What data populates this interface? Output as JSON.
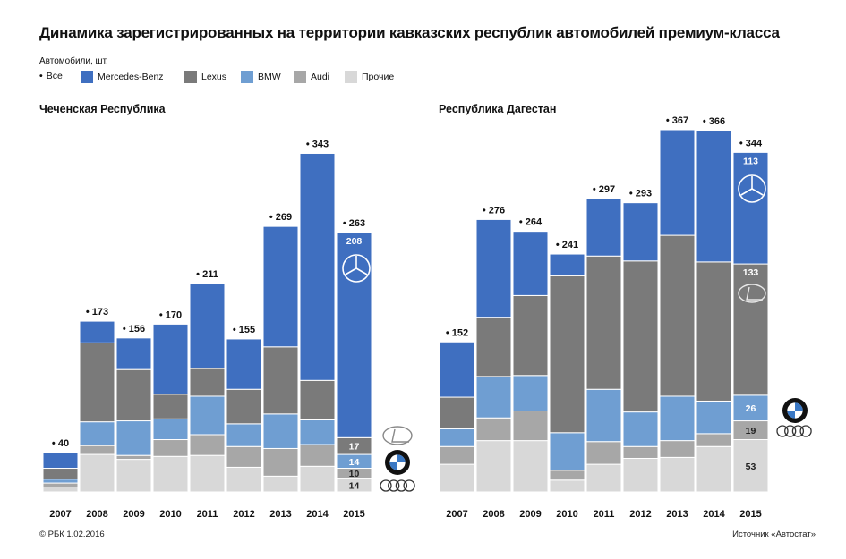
{
  "title": "Динамика зарегистрированных на территории кавказских республик автомобилей премиум-класса",
  "units_label": "Автомобили, шт.",
  "legend": {
    "all_label": "Все",
    "items": [
      {
        "name": "Mercedes-Benz",
        "color": "#3f6fc0"
      },
      {
        "name": "Lexus",
        "color": "#7a7a7a"
      },
      {
        "name": "BMW",
        "color": "#6f9ed2"
      },
      {
        "name": "Audi",
        "color": "#a7a7a7"
      },
      {
        "name": "Прочие",
        "color": "#d8d8d8"
      }
    ]
  },
  "icons": [
    "mercedes-logo-icon",
    "lexus-logo-icon",
    "bmw-logo-icon",
    "audi-logo-icon"
  ],
  "footer": {
    "left": "© РБК 1.02.2016",
    "right": "Источник «Автостат»"
  },
  "chart_data": [
    {
      "type": "bar",
      "stacked": true,
      "title": "Чеченская Республика",
      "categories": [
        "2007",
        "2008",
        "2009",
        "2010",
        "2011",
        "2012",
        "2013",
        "2014",
        "2015"
      ],
      "totals": [
        40,
        173,
        156,
        170,
        211,
        155,
        269,
        343,
        263
      ],
      "series": [
        {
          "name": "Прочие",
          "values": [
            5,
            38,
            33,
            36,
            37,
            25,
            16,
            26,
            14
          ]
        },
        {
          "name": "Audi",
          "values": [
            4,
            9,
            4,
            17,
            21,
            21,
            28,
            22,
            10
          ]
        },
        {
          "name": "BMW",
          "values": [
            4,
            24,
            35,
            21,
            39,
            23,
            35,
            25,
            14
          ]
        },
        {
          "name": "Lexus",
          "values": [
            11,
            80,
            52,
            25,
            28,
            35,
            68,
            40,
            17
          ]
        },
        {
          "name": "Mercedes-Benz",
          "values": [
            16,
            22,
            32,
            71,
            86,
            51,
            122,
            230,
            208
          ]
        }
      ],
      "labeled_values_2015": {
        "Mercedes-Benz": 208,
        "Lexus": 17,
        "BMW": 14,
        "Audi": 10,
        "Прочие": 14
      }
    },
    {
      "type": "bar",
      "stacked": true,
      "title": "Республика Дагестан",
      "categories": [
        "2007",
        "2008",
        "2009",
        "2010",
        "2011",
        "2012",
        "2013",
        "2014",
        "2015"
      ],
      "totals": [
        152,
        276,
        264,
        241,
        297,
        293,
        367,
        366,
        344
      ],
      "series": [
        {
          "name": "Прочие",
          "values": [
            28,
            52,
            52,
            12,
            28,
            34,
            35,
            46,
            53
          ]
        },
        {
          "name": "Audi",
          "values": [
            18,
            23,
            30,
            10,
            23,
            12,
            17,
            13,
            19
          ]
        },
        {
          "name": "BMW",
          "values": [
            18,
            42,
            36,
            38,
            53,
            35,
            45,
            33,
            26
          ]
        },
        {
          "name": "Lexus",
          "values": [
            32,
            60,
            81,
            159,
            135,
            153,
            163,
            141,
            133
          ]
        },
        {
          "name": "Mercedes-Benz",
          "values": [
            56,
            99,
            65,
            22,
            58,
            59,
            107,
            133,
            113
          ]
        }
      ],
      "labeled_values_2015": {
        "Mercedes-Benz": 113,
        "Lexus": 133,
        "BMW": 26,
        "Audi": 19,
        "Прочие": 53
      }
    }
  ]
}
